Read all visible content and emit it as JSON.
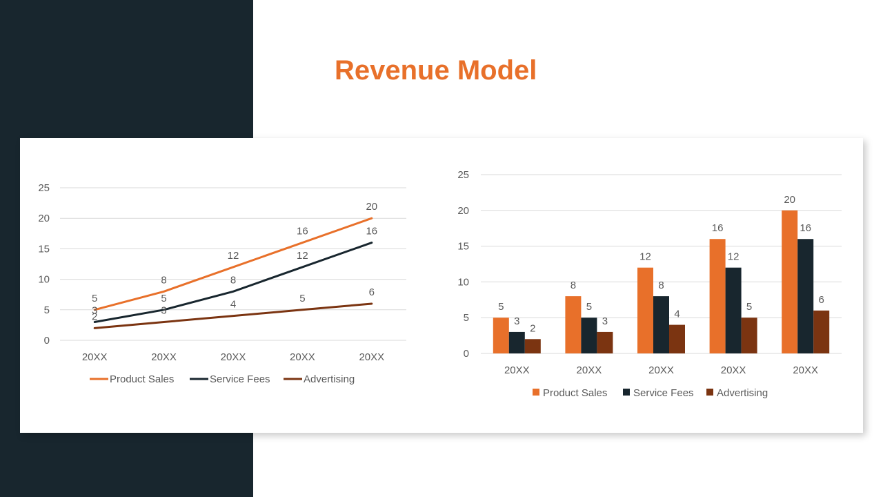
{
  "slide": {
    "title": "Revenue Model"
  },
  "colors": {
    "panel": "#18262e",
    "accent": "#e8702a",
    "series": [
      "#e8702a",
      "#18262e",
      "#7b3411"
    ]
  },
  "chart_data": [
    {
      "type": "line",
      "categories": [
        "20XX",
        "20XX",
        "20XX",
        "20XX",
        "20XX"
      ],
      "series": [
        {
          "name": "Product Sales",
          "values": [
            5,
            8,
            12,
            16,
            20
          ]
        },
        {
          "name": "Service Fees",
          "values": [
            3,
            5,
            8,
            12,
            16
          ]
        },
        {
          "name": "Advertising",
          "values": [
            2,
            3,
            4,
            5,
            6
          ]
        }
      ],
      "ylim": [
        0,
        25
      ],
      "yticks": [
        "0",
        "5",
        "10",
        "15",
        "20",
        "25"
      ],
      "grid": true,
      "data_labels": true,
      "legend": "bottom"
    },
    {
      "type": "bar",
      "categories": [
        "20XX",
        "20XX",
        "20XX",
        "20XX",
        "20XX"
      ],
      "series": [
        {
          "name": "Product Sales",
          "values": [
            5,
            8,
            12,
            16,
            20
          ]
        },
        {
          "name": "Service Fees",
          "values": [
            3,
            5,
            8,
            12,
            16
          ]
        },
        {
          "name": "Advertising",
          "values": [
            2,
            3,
            4,
            5,
            6
          ]
        }
      ],
      "ylim": [
        0,
        25
      ],
      "yticks": [
        "0",
        "5",
        "10",
        "15",
        "20",
        "25"
      ],
      "grid": true,
      "data_labels": true,
      "legend": "bottom"
    }
  ]
}
